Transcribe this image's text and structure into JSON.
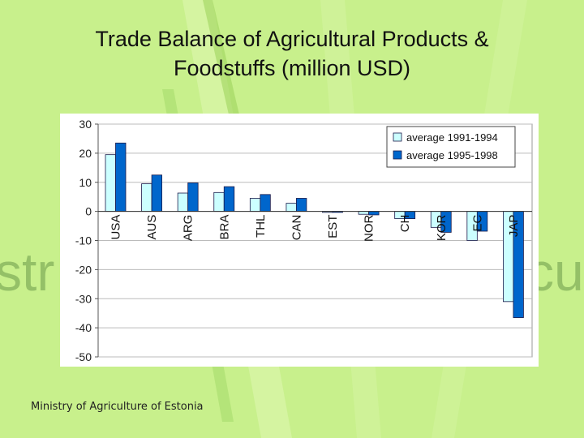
{
  "slide": {
    "title_line1": "Trade Balance of Agricultural Products &",
    "title_line2": "Foodstuffs (million USD)",
    "footer": "Ministry of Agriculture of Estonia",
    "background_color": "#c8f08c",
    "watermark_left": "str",
    "watermark_right": "cu"
  },
  "chart_data": {
    "type": "bar",
    "title": "",
    "xlabel": "",
    "ylabel": "",
    "categories": [
      "USA",
      "AUS",
      "ARG",
      "BRA",
      "THL",
      "CAN",
      "EST",
      "NOR",
      "CH",
      "KOR",
      "EC",
      "JAP"
    ],
    "series": [
      {
        "name": "average 1991-1994",
        "color": "#ccffff",
        "values": [
          19.5,
          9.5,
          6.3,
          6.5,
          4.5,
          2.8,
          0,
          -1,
          -2.5,
          -5.5,
          -10,
          -31
        ]
      },
      {
        "name": "average 1995-1998",
        "color": "#0066cc",
        "values": [
          23.5,
          12.5,
          9.8,
          8.5,
          5.8,
          4.5,
          -0.3,
          -1.2,
          -2.5,
          -7.2,
          -6.8,
          -36.5
        ]
      }
    ],
    "ylim": [
      -50,
      30
    ],
    "yticks": [
      30,
      20,
      10,
      0,
      -10,
      -20,
      -30,
      -40,
      -50
    ],
    "grid": true,
    "legend_position": "top-right"
  }
}
